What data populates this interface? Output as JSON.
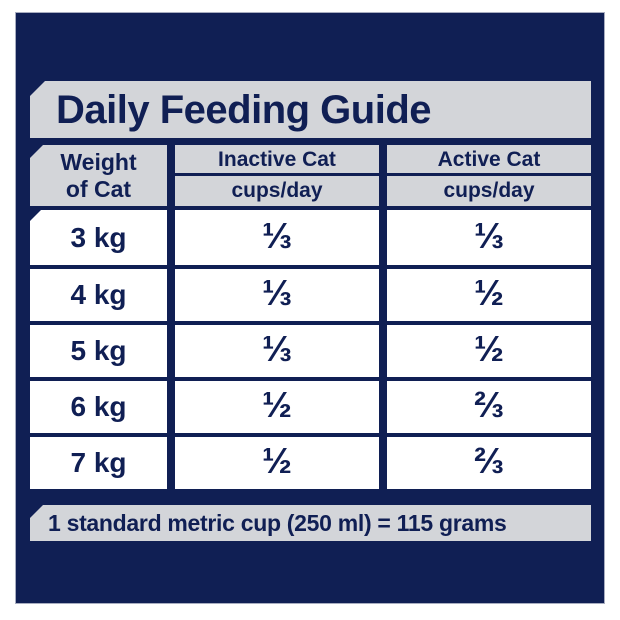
{
  "title": "Daily Feeding Guide",
  "footer_note": "1 standard metric cup (250 ml) = 115 grams",
  "table": {
    "weight_header": {
      "line1": "Weight",
      "line2": "of Cat"
    },
    "columns": [
      {
        "label": "Inactive Cat",
        "unit": "cups/day"
      },
      {
        "label": "Active Cat",
        "unit": "cups/day"
      }
    ],
    "rows": [
      {
        "weight": "3 kg",
        "inactive": "⅓",
        "active": "⅓"
      },
      {
        "weight": "4 kg",
        "inactive": "⅓",
        "active": "½"
      },
      {
        "weight": "5 kg",
        "inactive": "⅓",
        "active": "½"
      },
      {
        "weight": "6 kg",
        "inactive": "½",
        "active": "⅔"
      },
      {
        "weight": "7 kg",
        "inactive": "½",
        "active": "⅔"
      }
    ]
  },
  "chart_data": {
    "type": "table",
    "title": "Daily Feeding Guide",
    "columns": [
      "Weight of Cat",
      "Inactive Cat (cups/day)",
      "Active Cat (cups/day)"
    ],
    "rows": [
      [
        "3 kg",
        "1/3",
        "1/3"
      ],
      [
        "4 kg",
        "1/3",
        "1/2"
      ],
      [
        "5 kg",
        "1/3",
        "1/2"
      ],
      [
        "6 kg",
        "1/2",
        "2/3"
      ],
      [
        "7 kg",
        "1/2",
        "2/3"
      ]
    ],
    "footnote": "1 standard metric cup (250 ml) = 115 grams"
  },
  "colors": {
    "navy": "#101f54",
    "banner_gray": "#d3d5d9",
    "cell_white": "#ffffff",
    "outer_white": "#ffffff"
  }
}
